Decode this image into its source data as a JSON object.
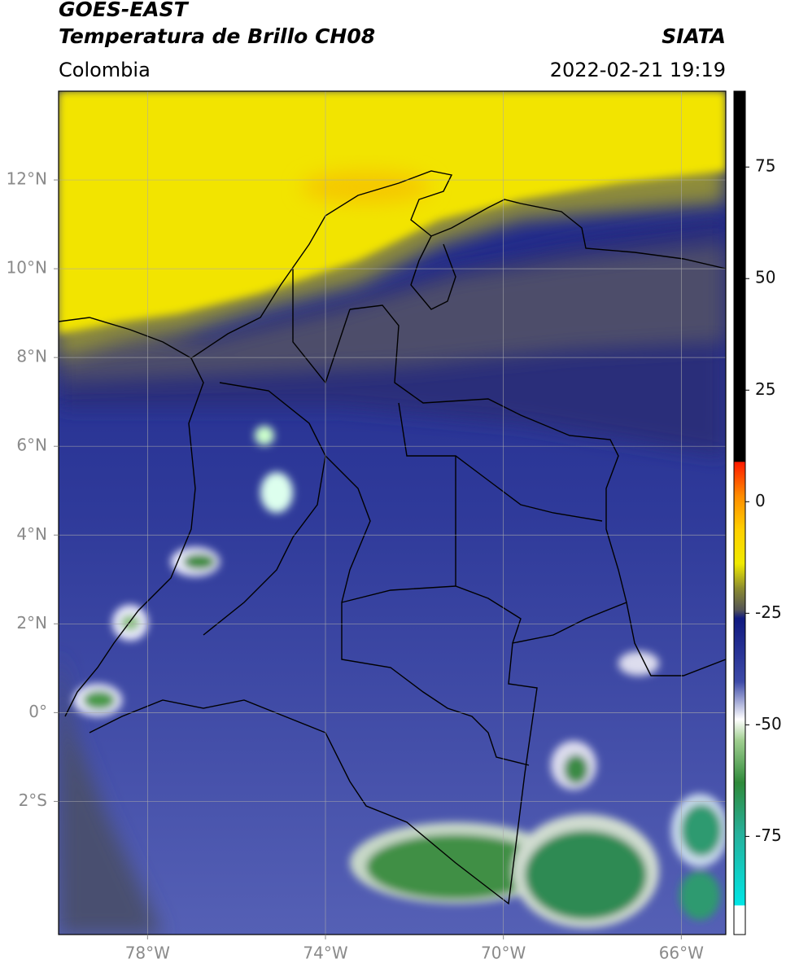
{
  "header": {
    "title": "GOES-EAST",
    "subtitle": "Temperatura de Brillo CH08",
    "source": "SIATA",
    "region": "Colombia",
    "datetime": "2022-02-21 19:19"
  },
  "map": {
    "xlim": [
      -80,
      -65
    ],
    "ylim": [
      -5,
      14
    ],
    "grid": true,
    "xticks": [
      {
        "value": -78,
        "label": "78°W"
      },
      {
        "value": -74,
        "label": "74°W"
      },
      {
        "value": -70,
        "label": "70°W"
      },
      {
        "value": -66,
        "label": "66°W"
      }
    ],
    "yticks": [
      {
        "value": 12,
        "label": "12°N"
      },
      {
        "value": 10,
        "label": "10°N"
      },
      {
        "value": 8,
        "label": "8°N"
      },
      {
        "value": 6,
        "label": "6°N"
      },
      {
        "value": 4,
        "label": "4°N"
      },
      {
        "value": 2,
        "label": "2°N"
      },
      {
        "value": 0,
        "label": "0°"
      },
      {
        "value": -2,
        "label": "2°S"
      }
    ]
  },
  "colorbar": {
    "lim": [
      -97,
      92
    ],
    "ticks": [
      75,
      50,
      25,
      0,
      -25,
      -50,
      -75
    ]
  }
}
